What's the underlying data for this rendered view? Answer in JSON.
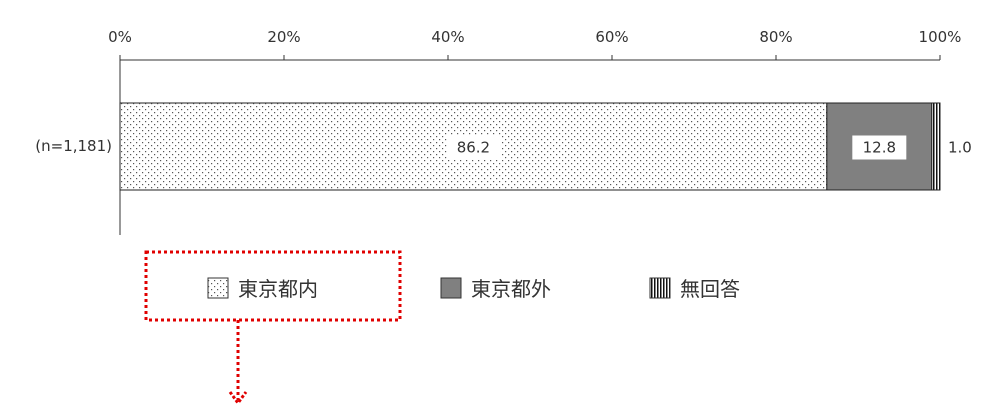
{
  "chart_data": {
    "type": "bar",
    "orientation": "horizontal",
    "stacked": true,
    "categories": [
      "(n=1,181)"
    ],
    "series": [
      {
        "name": "東京都内",
        "values": [
          86.2
        ],
        "pattern": "dots",
        "color": "#ffffff"
      },
      {
        "name": "東京都外",
        "values": [
          12.8
        ],
        "pattern": "solid",
        "color": "#808080"
      },
      {
        "name": "無回答",
        "values": [
          1.0
        ],
        "pattern": "vertical-lines",
        "color": "#ffffff"
      }
    ],
    "data_labels": [
      "86.2",
      "12.8",
      "1.0"
    ],
    "x_ticks": [
      "0%",
      "20%",
      "40%",
      "60%",
      "80%",
      "100%"
    ],
    "xlim": [
      0,
      100
    ],
    "grid": false,
    "legend_position": "bottom",
    "highlight": {
      "target": "東京都内",
      "style": "red dotted box with downward arrow",
      "color": "#e00000"
    }
  }
}
